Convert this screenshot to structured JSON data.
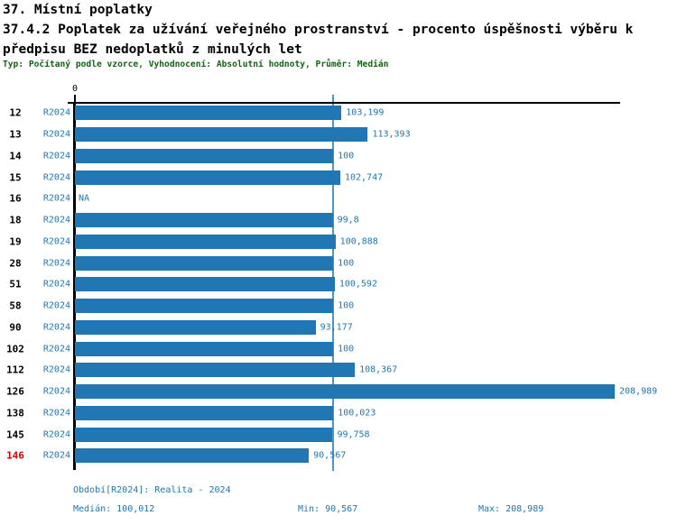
{
  "header": {
    "title_line1": "37. Místní poplatky",
    "title_line2": "37.4.2 Poplatek za užívání veřejného prostranství - procento úspěšnosti výběru k",
    "title_line3": "předpisu BEZ nedoplatků z minulých let",
    "subtitle": "Typ: Počítaný podle vzorce, Vyhodnocení: Absolutní hodnoty, Průměr: Medián"
  },
  "chart_data": {
    "type": "bar",
    "orientation": "horizontal",
    "axis": {
      "zero_label": "0",
      "x_min": 0,
      "x_max_implied": 212,
      "median_gridline_value": 100.012,
      "grid": "median-line-only"
    },
    "legend": "none",
    "series_name": "R2024",
    "rows": [
      {
        "id": "12",
        "period": "R2024",
        "value": 103.199,
        "label": "103,199"
      },
      {
        "id": "13",
        "period": "R2024",
        "value": 113.393,
        "label": "113,393"
      },
      {
        "id": "14",
        "period": "R2024",
        "value": 100,
        "label": "100"
      },
      {
        "id": "15",
        "period": "R2024",
        "value": 102.747,
        "label": "102,747"
      },
      {
        "id": "16",
        "period": "R2024",
        "value": null,
        "label": "NA"
      },
      {
        "id": "18",
        "period": "R2024",
        "value": 99.8,
        "label": "99,8"
      },
      {
        "id": "19",
        "period": "R2024",
        "value": 100.888,
        "label": "100,888"
      },
      {
        "id": "28",
        "period": "R2024",
        "value": 100,
        "label": "100"
      },
      {
        "id": "51",
        "period": "R2024",
        "value": 100.592,
        "label": "100,592"
      },
      {
        "id": "58",
        "period": "R2024",
        "value": 100,
        "label": "100"
      },
      {
        "id": "90",
        "period": "R2024",
        "value": 93.177,
        "label": "93,177"
      },
      {
        "id": "102",
        "period": "R2024",
        "value": 100,
        "label": "100"
      },
      {
        "id": "112",
        "period": "R2024",
        "value": 108.367,
        "label": "108,367"
      },
      {
        "id": "126",
        "period": "R2024",
        "value": 208.989,
        "label": "208,989"
      },
      {
        "id": "138",
        "period": "R2024",
        "value": 100.023,
        "label": "100,023"
      },
      {
        "id": "145",
        "period": "R2024",
        "value": 99.758,
        "label": "99,758"
      },
      {
        "id": "146",
        "period": "R2024",
        "value": 90.567,
        "label": "90,567",
        "highlight": true
      }
    ],
    "footer": {
      "period_label": "Období[R2024]: Realita - 2024",
      "median_label": "Medián: 100,012",
      "min_label": "Min: 90,567",
      "max_label": "Max: 208,989"
    }
  },
  "colors": {
    "bar": "#2077b4",
    "blue_text": "#1f77b4",
    "highlight_red": "#d10000",
    "subtitle_green": "#116611",
    "axis_black": "#000000",
    "median_line": "#4f94c4",
    "background": "#ffffff"
  }
}
